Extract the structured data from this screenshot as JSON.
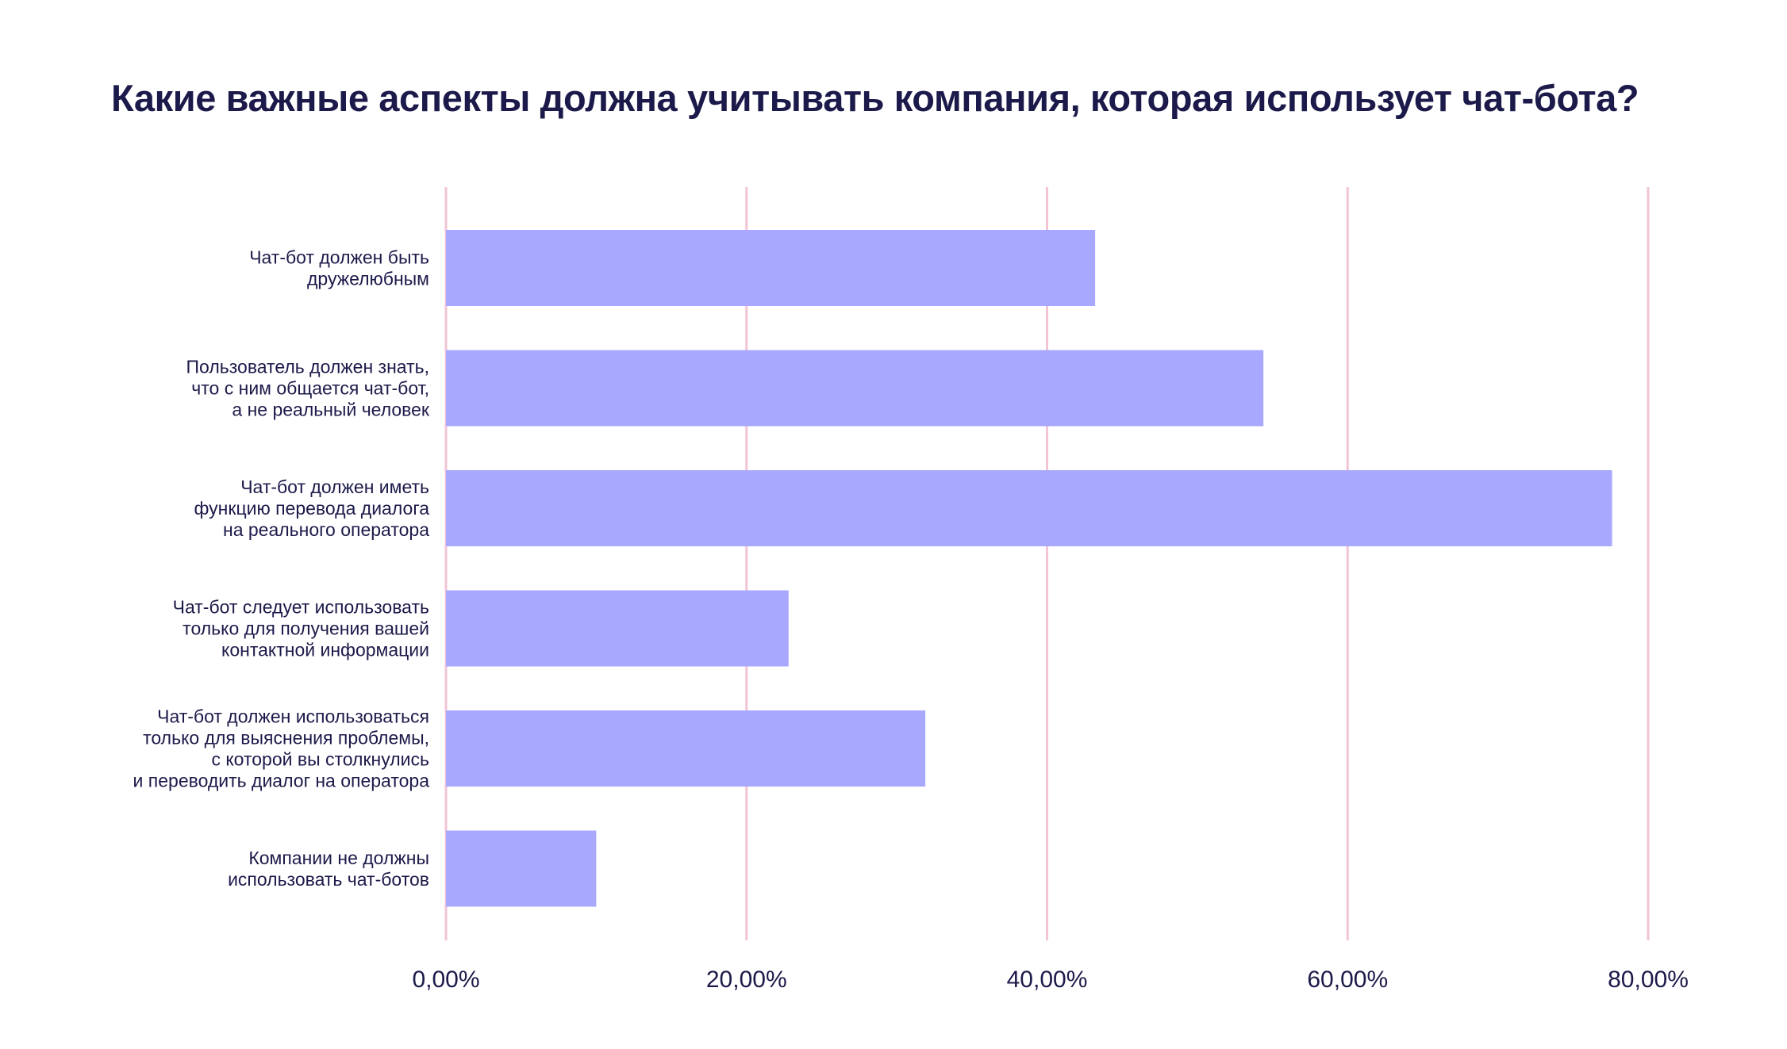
{
  "chart_data": {
    "type": "bar",
    "orientation": "horizontal",
    "title": "Какие важные аспекты должна учитывать компания, которая использует чат-бота?",
    "xlabel": "",
    "ylabel": "",
    "categories": [
      [
        "Чат-бот должен быть",
        "дружелюбным"
      ],
      [
        "Пользователь должен знать,",
        "что с ним общается чат-бот,",
        "а не реальный человек"
      ],
      [
        "Чат-бот должен иметь",
        "функцию перевода диалога",
        "на реального оператора"
      ],
      [
        "Чат-бот следует использовать",
        "только для получения вашей",
        "контактной информации"
      ],
      [
        "Чат-бот должен использоваться",
        "только для выяснения проблемы,",
        "с которой вы столкнулись",
        "и переводить диалог на оператора"
      ],
      [
        "Компании не должны",
        "использовать чат-ботов"
      ]
    ],
    "values": [
      43.2,
      54.4,
      77.6,
      22.8,
      31.9,
      10.0
    ],
    "unit": "%",
    "xlim": [
      0,
      80
    ],
    "x_ticks": [
      0,
      20,
      40,
      60,
      80
    ],
    "x_tick_labels": [
      "0,00%",
      "20,00%",
      "40,00%",
      "60,00%",
      "80,00%"
    ],
    "grid": "vertical",
    "legend": "none",
    "colors": {
      "bar": "#a8a8fe",
      "grid": "#f2c4d6",
      "text": "#1c1a4a"
    }
  }
}
